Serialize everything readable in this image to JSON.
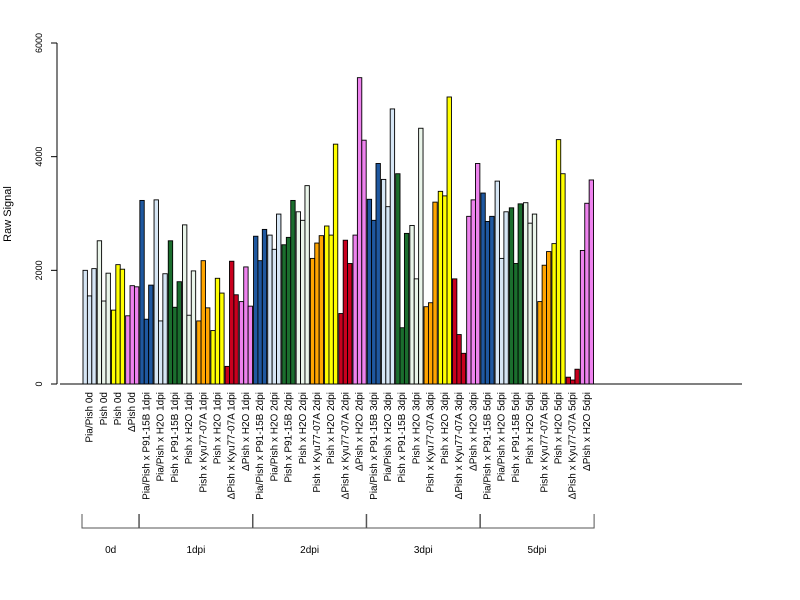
{
  "chart_data": {
    "type": "bar",
    "ylabel": "Raw Signal",
    "ylim": [
      0,
      6000
    ],
    "yticks": [
      0,
      2000,
      4000,
      6000
    ],
    "bars_per_group": 3,
    "categories": [
      "Pia/Pish 0d",
      "Pish 0d",
      "Pish 0d",
      "ΔPish 0d",
      "Pia/Pish x P91-15B 1dpi",
      "Pia/Pish x H2O 1dpi",
      "Pish x P91-15B 1dpi",
      "Pish x H2O 1dpi",
      "Pish x Kyu77-07A 1dpi",
      "Pish x H2O 1dpi",
      "ΔPish x Kyu77-07A 1dpi",
      "ΔPish x H2O 1dpi",
      "Pia/Pish x P91-15B 2dpi",
      "Pia/Pish x H2O 2dpi",
      "Pish x P91-15B 2dpi",
      "Pish x H2O 2dpi",
      "Pish x Kyu77-07A 2dpi",
      "Pish x H2O 2dpi",
      "ΔPish x Kyu77-07A 2dpi",
      "ΔPish x H2O 2dpi",
      "Pia/Pish x P91-15B 3dpi",
      "Pia/Pish x H2O 3dpi",
      "Pish x P91-15B 3dpi",
      "Pish x H2O 3dpi",
      "Pish x Kyu77-07A 3dpi",
      "Pish x H2O 3dpi",
      "ΔPish x Kyu77-07A 3dpi",
      "ΔPish x H2O 3dpi",
      "Pia/Pish x P91-15B 5dpi",
      "Pia/Pish x H2O 5dpi",
      "Pish x P91-15B 5dpi",
      "Pish x H2O 5dpi",
      "Pish x Kyu77-07A 5dpi",
      "Pish x H2O 5dpi",
      "ΔPish x Kyu77-07A 5dpi",
      "ΔPish x H2O 5dpi"
    ],
    "values": [
      [
        2000,
        1550,
        2030
      ],
      [
        2520,
        1460,
        1950
      ],
      [
        1300,
        2100,
        2020
      ],
      [
        1200,
        1730,
        1710
      ],
      [
        3230,
        1140,
        1740
      ],
      [
        3240,
        1110,
        1940
      ],
      [
        2520,
        1350,
        1800
      ],
      [
        2800,
        1210,
        1990
      ],
      [
        1110,
        2170,
        1340
      ],
      [
        940,
        1860,
        1600
      ],
      [
        310,
        2160,
        1570
      ],
      [
        1450,
        2060,
        1370
      ],
      [
        2600,
        2170,
        2720
      ],
      [
        2620,
        2370,
        2990
      ],
      [
        2450,
        2580,
        3230
      ],
      [
        3030,
        2880,
        3490
      ],
      [
        2210,
        2480,
        2610
      ],
      [
        2780,
        2620,
        4220
      ],
      [
        1240,
        2530,
        2120
      ],
      [
        2620,
        5390,
        4290
      ],
      [
        3250,
        2880,
        3880
      ],
      [
        3600,
        3120,
        4840
      ],
      [
        3700,
        990,
        2650
      ],
      [
        2790,
        1850,
        4500
      ],
      [
        1360,
        1430,
        3200
      ],
      [
        3390,
        3310,
        5050
      ],
      [
        1850,
        870,
        540
      ],
      [
        2950,
        3240,
        3880
      ],
      [
        3360,
        2860,
        2950
      ],
      [
        3570,
        2210,
        3030
      ],
      [
        3100,
        2120,
        3170
      ],
      [
        3190,
        2830,
        2990
      ],
      [
        1450,
        2090,
        2330
      ],
      [
        2470,
        4300,
        3700
      ],
      [
        120,
        70,
        260
      ],
      [
        2350,
        3180,
        3590
      ]
    ],
    "condition_colors": [
      "#d6e6f5",
      "#eaf5ea",
      "#ffff00",
      "#ee82ee",
      "#1f58a0",
      "#d6e6f5",
      "#1b6e2e",
      "#eaf5ea",
      "#ffa500",
      "#ffff00",
      "#c8001e",
      "#ee82ee",
      "#1f58a0",
      "#d6e6f5",
      "#1b6e2e",
      "#eaf5ea",
      "#ffa500",
      "#ffff00",
      "#c8001e",
      "#ee82ee",
      "#1f58a0",
      "#d6e6f5",
      "#1b6e2e",
      "#eaf5ea",
      "#ffa500",
      "#ffff00",
      "#c8001e",
      "#ee82ee",
      "#1f58a0",
      "#d6e6f5",
      "#1b6e2e",
      "#eaf5ea",
      "#ffa500",
      "#ffff00",
      "#c8001e",
      "#ee82ee"
    ],
    "groups": [
      {
        "label": "0d",
        "count": 4
      },
      {
        "label": "1dpi",
        "count": 8
      },
      {
        "label": "2dpi",
        "count": 8
      },
      {
        "label": "3dpi",
        "count": 8
      },
      {
        "label": "5dpi",
        "count": 8
      }
    ]
  }
}
